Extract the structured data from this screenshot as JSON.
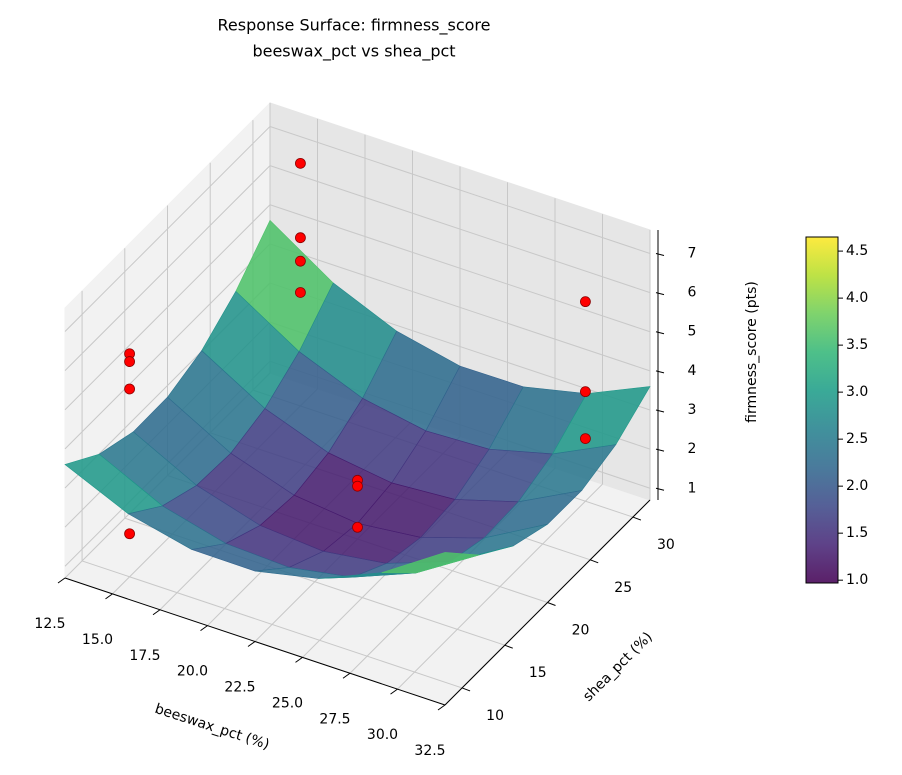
{
  "chart_data": {
    "type": "surface3d",
    "title": "Response Surface: firmness_score",
    "subtitle": "beeswax_pct vs shea_pct",
    "xlabel": "beeswax_pct (%)",
    "ylabel": "shea_pct (%)",
    "zlabel": "firmness_score (pts)",
    "xlim": [
      12.5,
      32.5
    ],
    "ylim": [
      8,
      32
    ],
    "zlim": [
      0.7,
      7.6
    ],
    "xticks": [
      12.5,
      {
        "value": 15,
        "label": "15.0"
      },
      17.5,
      {
        "value": 20,
        "label": "20.0"
      },
      22.5,
      {
        "value": 25,
        "label": "25.0"
      },
      27.5,
      {
        "value": 30,
        "label": "30.0"
      },
      32.5
    ],
    "yticks": [
      10,
      15,
      20,
      25,
      30
    ],
    "zticks": [
      1,
      2,
      3,
      4,
      5,
      6,
      7
    ],
    "grid": true,
    "colormap": "viridis",
    "surface": {
      "x": [
        12.5,
        15.83,
        19.17,
        22.5,
        25.83,
        29.17,
        32.5
      ],
      "y": [
        8,
        12,
        16,
        20,
        24,
        28,
        32
      ],
      "z": [
        [
          3.6,
          2.88,
          2.51,
          2.5,
          2.85,
          3.54,
          4.6
        ],
        [
          2.99,
          2.21,
          1.79,
          1.72,
          2.01,
          2.66,
          3.66
        ],
        [
          2.69,
          1.86,
          1.38,
          1.26,
          1.49,
          2.08,
          3.02
        ],
        [
          2.7,
          1.81,
          1.28,
          1.1,
          1.28,
          1.81,
          2.7
        ],
        [
          3.02,
          2.08,
          1.49,
          1.26,
          1.38,
          1.86,
          2.69
        ],
        [
          3.66,
          2.66,
          2.01,
          1.72,
          1.79,
          2.21,
          2.99
        ],
        [
          4.6,
          3.54,
          2.85,
          2.5,
          2.51,
          2.88,
          3.6
        ]
      ]
    },
    "points": {
      "color": "#ff0000",
      "x": [
        15,
        15,
        15,
        15,
        15,
        15,
        15,
        15,
        30,
        30,
        30,
        22.5,
        22.5,
        22.5
      ],
      "y": [
        10,
        10,
        10,
        10,
        30,
        30,
        30,
        30,
        30,
        30,
        30,
        20,
        20,
        20
      ],
      "z": [
        6.4,
        6.2,
        5.5,
        1.8,
        6.9,
        5.0,
        4.4,
        3.6,
        5.8,
        3.5,
        2.3,
        2.2,
        2.05,
        1.0
      ]
    },
    "colorbar": {
      "ylim": [
        0.97,
        4.65
      ],
      "ticks": [
        {
          "value": 1,
          "label": "1.0"
        },
        {
          "value": 1.5,
          "label": "1.5"
        },
        {
          "value": 2,
          "label": "2.0"
        },
        {
          "value": 2.5,
          "label": "2.5"
        },
        {
          "value": 3,
          "label": "3.0"
        },
        {
          "value": 3.5,
          "label": "3.5"
        },
        {
          "value": 4,
          "label": "4.0"
        },
        {
          "value": 4.5,
          "label": "4.5"
        }
      ]
    }
  }
}
